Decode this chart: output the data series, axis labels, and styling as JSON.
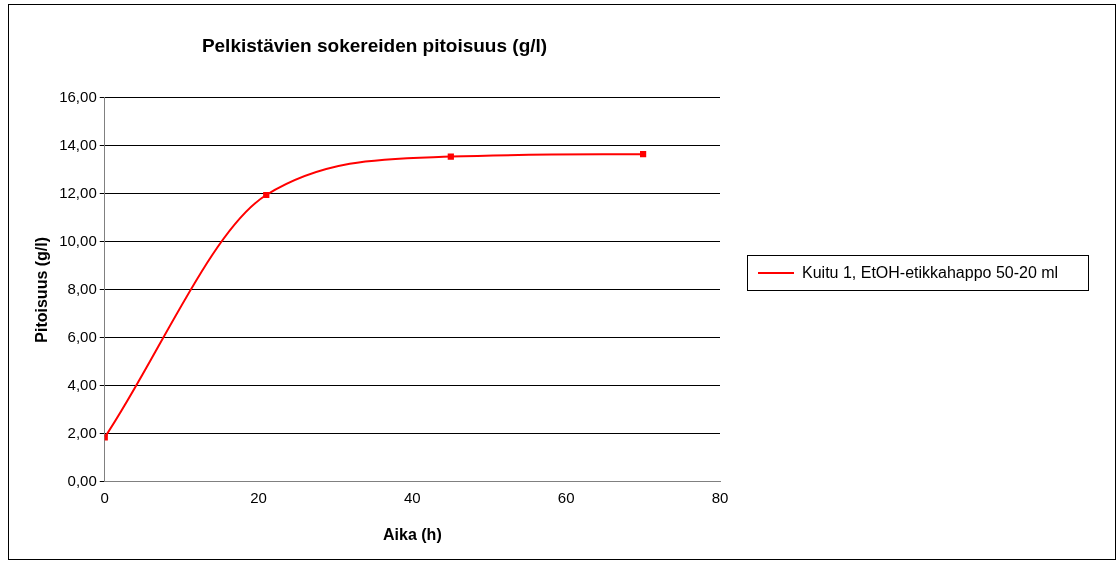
{
  "chart_data": {
    "type": "line",
    "title": "Pelkistävien sokereiden pitoisuus (g/l)",
    "xlabel": "Aika (h)",
    "ylabel": "Pitoisuus (g/l)",
    "series": [
      {
        "name": "Kuitu 1, EtOH-etikkahappo 50-20 ml",
        "color": "#ff0000",
        "x": [
          0,
          21,
          45,
          70
        ],
        "values": [
          1.85,
          11.95,
          13.55,
          13.65
        ]
      }
    ],
    "xlim": [
      0,
      80
    ],
    "xticks": [
      0,
      20,
      40,
      60,
      80
    ],
    "ylim": [
      0,
      16
    ],
    "yticks": [
      {
        "value": 0,
        "label": "0,00"
      },
      {
        "value": 2,
        "label": "2,00"
      },
      {
        "value": 4,
        "label": "4,00"
      },
      {
        "value": 6,
        "label": "6,00"
      },
      {
        "value": 8,
        "label": "8,00"
      },
      {
        "value": 10,
        "label": "10,00"
      },
      {
        "value": 12,
        "label": "12,00"
      },
      {
        "value": 14,
        "label": "14,00"
      },
      {
        "value": 16,
        "label": "16,00"
      }
    ],
    "grid": "y",
    "legend": "right",
    "marker": "square",
    "line_style": "solid"
  }
}
